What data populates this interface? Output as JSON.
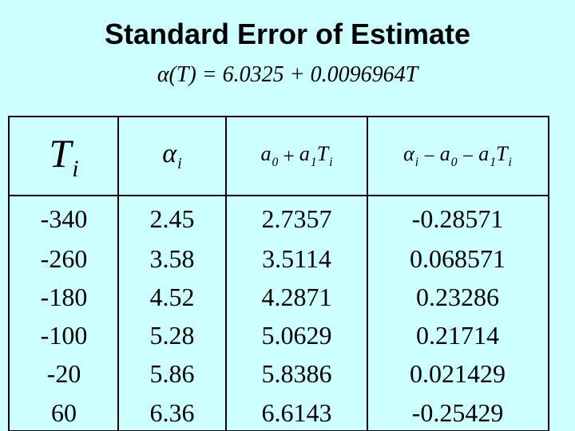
{
  "title": "Standard Error of Estimate",
  "formula": "α(T) = 6.0325 + 0.0096964T",
  "table": {
    "headers": [
      [
        {
          "base": "T",
          "sub": "i"
        }
      ],
      [
        {
          "base": "α",
          "sub": "i"
        }
      ],
      [
        {
          "base": "a",
          "sub": "0"
        },
        {
          "base": "+"
        },
        {
          "base": "a",
          "sub": "1"
        },
        {
          "base": "T",
          "sub": "i"
        }
      ],
      [
        {
          "base": "α",
          "sub": "i"
        },
        {
          "base": "−"
        },
        {
          "base": "a",
          "sub": "0"
        },
        {
          "base": "−"
        },
        {
          "base": "a",
          "sub": "1"
        },
        {
          "base": "T",
          "sub": "i"
        }
      ]
    ],
    "rows": [
      [
        "-340",
        "2.45",
        "2.7357",
        "-0.28571"
      ],
      [
        "-260",
        "3.58",
        "3.5114",
        "0.068571"
      ],
      [
        "-180",
        "4.52",
        "4.2871",
        "0.23286"
      ],
      [
        "-100",
        "5.28",
        "5.0629",
        "0.21714"
      ],
      [
        "-20",
        "5.86",
        "5.8386",
        "0.021429"
      ],
      [
        "60",
        "6.36",
        "6.6143",
        "-0.25429"
      ]
    ]
  }
}
